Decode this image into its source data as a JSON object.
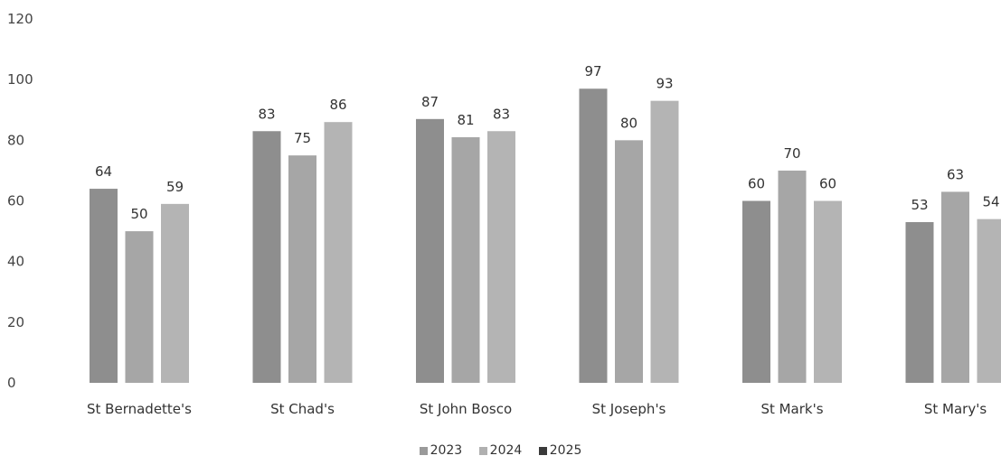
{
  "chart_data": {
    "type": "bar",
    "categories": [
      "St Bernadette's",
      "St Chad's",
      "St John Bosco",
      "St Joseph's",
      "St Mark's",
      "St Mary's"
    ],
    "series": [
      {
        "name": "2023",
        "values": [
          64,
          83,
          87,
          97,
          60,
          53
        ],
        "color": "#8e8e8e"
      },
      {
        "name": "2024",
        "values": [
          50,
          75,
          81,
          80,
          70,
          63
        ],
        "color": "#a6a6a6"
      },
      {
        "name": "2025",
        "values": [
          59,
          86,
          83,
          93,
          60,
          54
        ],
        "color": "#b4b4b4"
      }
    ],
    "legend_colors": [
      "#9a9a9a",
      "#b0b0b0",
      "#3a3a3a"
    ],
    "ylim": [
      0,
      120
    ],
    "yticks": [
      0,
      20,
      40,
      60,
      80,
      100,
      120
    ],
    "data_labels": true,
    "legend_position": "bottom",
    "grid": false
  }
}
